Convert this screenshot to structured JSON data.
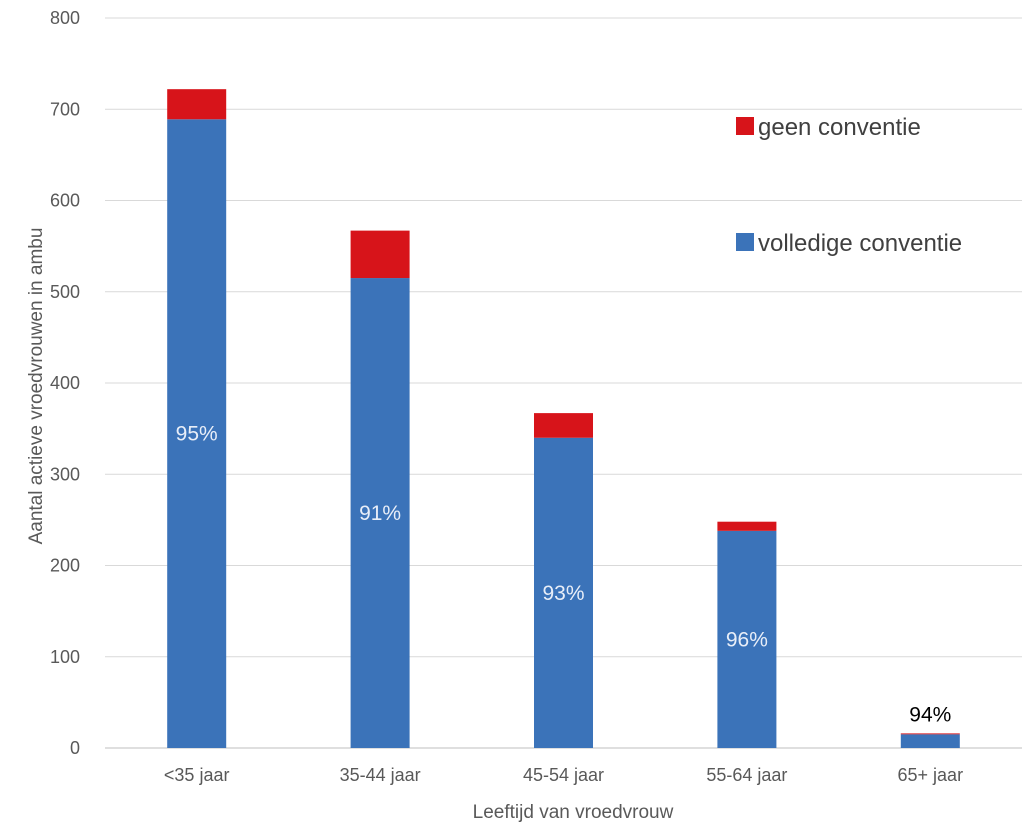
{
  "chart_data": {
    "type": "bar",
    "stacked": true,
    "title": "",
    "xlabel": "Leeftijd van vroedvrouw",
    "ylabel": "Aantal actieve vroedvrouwen in ambu",
    "categories": [
      "<35 jaar",
      "35-44 jaar",
      "45-54 jaar",
      "55-64 jaar",
      "65+ jaar"
    ],
    "series": [
      {
        "name": "volledige conventie",
        "color": "#3B73B9",
        "values": [
          689,
          515,
          340,
          238,
          15
        ]
      },
      {
        "name": "geen conventie",
        "color": "#D7141A",
        "values": [
          33,
          52,
          27,
          10,
          1
        ]
      }
    ],
    "data_labels": [
      "95%",
      "91%",
      "93%",
      "96%",
      "94%"
    ],
    "data_label_colors": [
      "#e8eef8",
      "#e8eef8",
      "#e8eef8",
      "#e8eef8",
      "#000000"
    ],
    "ylim": [
      0,
      800
    ],
    "yticks": [
      0,
      100,
      200,
      300,
      400,
      500,
      600,
      700,
      800
    ],
    "grid": true,
    "legend_position": "top-right",
    "legend_order": [
      "geen conventie",
      "volledige conventie"
    ]
  }
}
